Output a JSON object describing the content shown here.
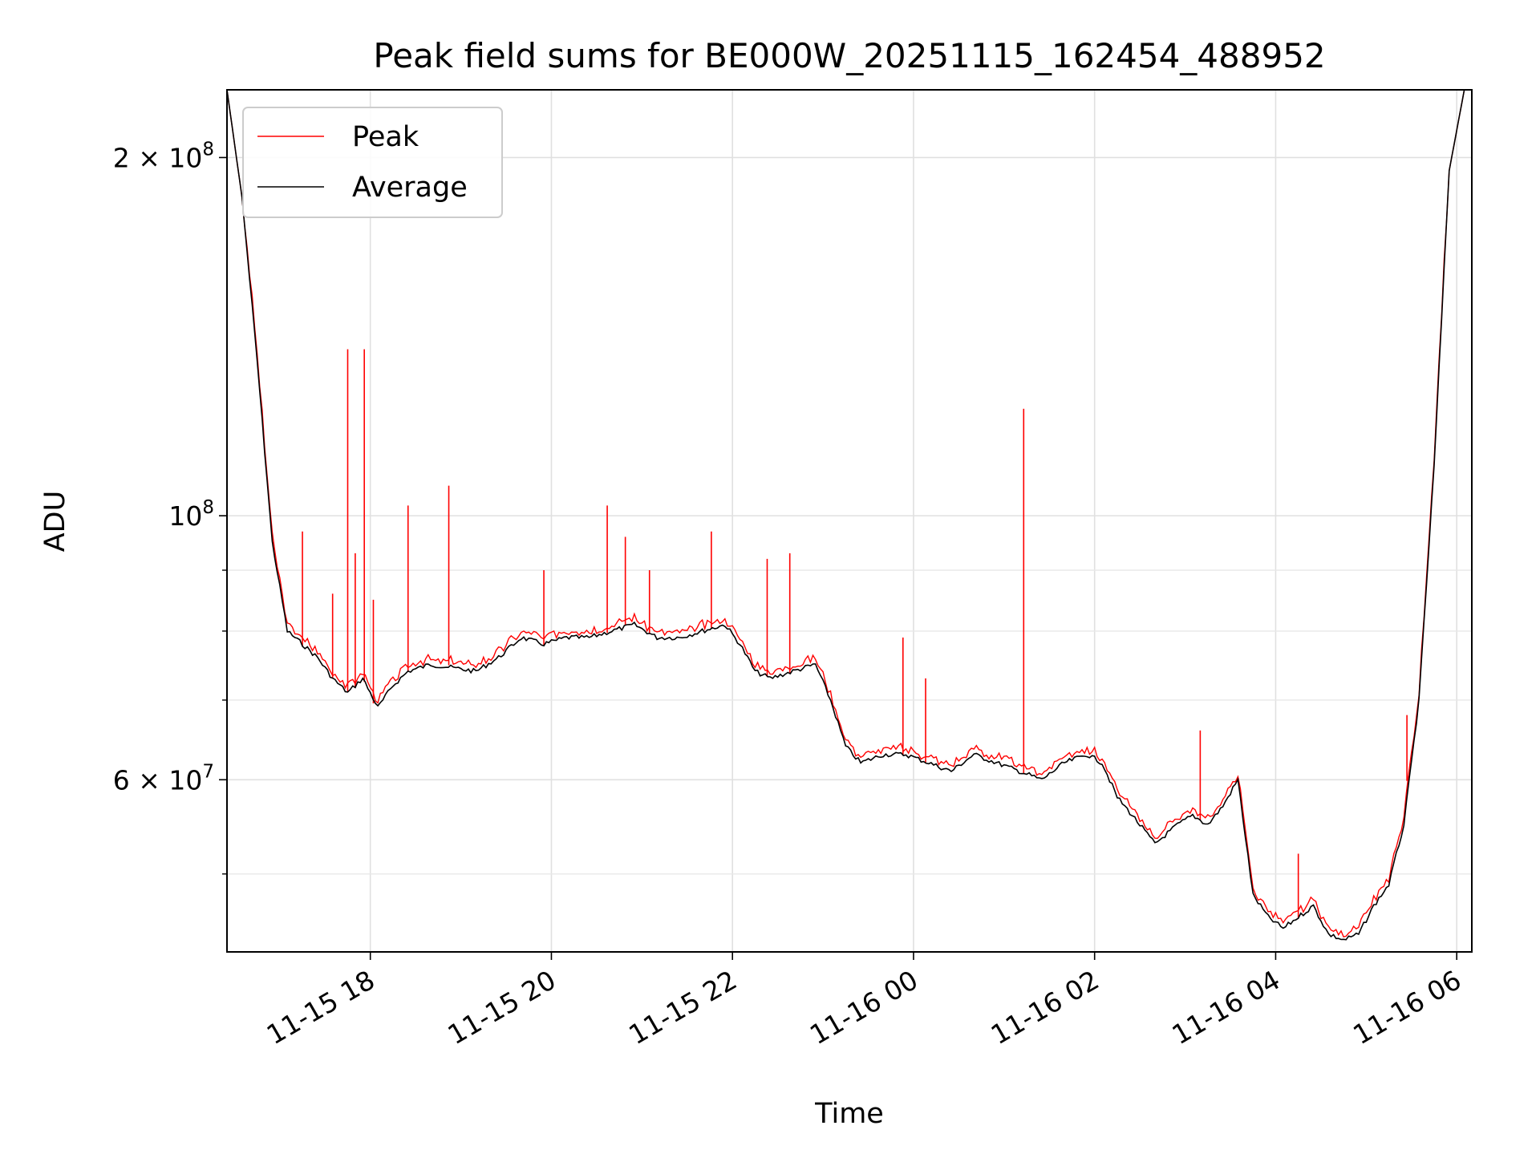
{
  "chart_data": {
    "type": "line",
    "title": "Peak field sums for BE000W_20251115_162454_488952",
    "xlabel": "Time",
    "ylabel": "ADU",
    "y_scale": "log",
    "ylim": [
      43000000,
      228000000
    ],
    "xlim": [
      "2025-11-15 16:25",
      "2025-11-16 06:10"
    ],
    "x_ticks": [
      {
        "value": "2025-11-15 18:00",
        "label": "11-15 18"
      },
      {
        "value": "2025-11-15 20:00",
        "label": "11-15 20"
      },
      {
        "value": "2025-11-15 22:00",
        "label": "11-15 22"
      },
      {
        "value": "2025-11-16 00:00",
        "label": "11-16 00"
      },
      {
        "value": "2025-11-16 02:00",
        "label": "11-16 02"
      },
      {
        "value": "2025-11-16 04:00",
        "label": "11-16 04"
      },
      {
        "value": "2025-11-16 06:00",
        "label": "11-16 06"
      }
    ],
    "y_major_ticks": [
      {
        "value": 100000000,
        "base": "10",
        "exp": "8"
      },
      {
        "value": 200000000,
        "base": "2 × 10",
        "exp": "8"
      },
      {
        "value": 60000000,
        "base": "6 × 10",
        "exp": "7"
      }
    ],
    "y_minor_ticks": [
      50000000,
      70000000,
      80000000,
      90000000
    ],
    "grid": true,
    "legend_position": "top-left",
    "series": [
      {
        "name": "Average",
        "color": "#000000",
        "x": [
          "2025-11-15 16:25",
          "2025-11-15 16:35",
          "2025-11-15 16:45",
          "2025-11-15 16:55",
          "2025-11-15 17:05",
          "2025-11-15 17:15",
          "2025-11-15 17:25",
          "2025-11-15 17:35",
          "2025-11-15 17:45",
          "2025-11-15 17:55",
          "2025-11-15 18:05",
          "2025-11-15 18:15",
          "2025-11-15 18:25",
          "2025-11-15 18:40",
          "2025-11-15 18:55",
          "2025-11-15 19:10",
          "2025-11-15 19:25",
          "2025-11-15 19:40",
          "2025-11-15 19:55",
          "2025-11-15 20:10",
          "2025-11-15 20:25",
          "2025-11-15 20:40",
          "2025-11-15 20:55",
          "2025-11-15 21:10",
          "2025-11-15 21:25",
          "2025-11-15 21:40",
          "2025-11-15 21:55",
          "2025-11-15 22:05",
          "2025-11-15 22:15",
          "2025-11-15 22:25",
          "2025-11-15 22:40",
          "2025-11-15 22:55",
          "2025-11-15 23:05",
          "2025-11-15 23:15",
          "2025-11-15 23:25",
          "2025-11-15 23:40",
          "2025-11-15 23:55",
          "2025-11-16 00:10",
          "2025-11-16 00:25",
          "2025-11-16 00:40",
          "2025-11-16 00:55",
          "2025-11-16 01:10",
          "2025-11-16 01:25",
          "2025-11-16 01:40",
          "2025-11-16 01:55",
          "2025-11-16 02:05",
          "2025-11-16 02:15",
          "2025-11-16 02:25",
          "2025-11-16 02:40",
          "2025-11-16 02:55",
          "2025-11-16 03:05",
          "2025-11-16 03:15",
          "2025-11-16 03:25",
          "2025-11-16 03:35",
          "2025-11-16 03:45",
          "2025-11-16 03:55",
          "2025-11-16 04:05",
          "2025-11-16 04:15",
          "2025-11-16 04:25",
          "2025-11-16 04:35",
          "2025-11-16 04:45",
          "2025-11-16 04:55",
          "2025-11-16 05:05",
          "2025-11-16 05:15",
          "2025-11-16 05:25",
          "2025-11-16 05:35",
          "2025-11-16 05:45",
          "2025-11-16 05:55",
          "2025-11-16 06:05",
          "2025-11-16 06:10"
        ],
        "values": [
          228000000,
          185000000,
          135000000,
          95000000,
          80000000,
          78000000,
          76000000,
          73000000,
          71000000,
          73000000,
          69000000,
          72000000,
          74000000,
          75000000,
          74500000,
          74000000,
          76000000,
          79000000,
          78000000,
          79000000,
          79000000,
          80000000,
          81000000,
          79000000,
          79000000,
          80000000,
          81000000,
          78000000,
          74000000,
          73000000,
          74000000,
          75000000,
          70000000,
          64000000,
          62000000,
          63000000,
          63000000,
          62000000,
          61000000,
          63000000,
          62000000,
          61000000,
          60000000,
          62000000,
          63000000,
          62000000,
          58000000,
          56000000,
          53000000,
          55000000,
          56000000,
          55000000,
          57000000,
          60000000,
          48000000,
          46000000,
          45000000,
          46000000,
          47000000,
          44500000,
          44000000,
          44500000,
          47000000,
          49000000,
          55000000,
          70000000,
          110000000,
          195000000,
          228000000,
          228000000
        ]
      },
      {
        "name": "Peak",
        "color": "#ff0000",
        "x": [
          "2025-11-15 17:15",
          "2025-11-15 17:35",
          "2025-11-15 17:45",
          "2025-11-15 17:50",
          "2025-11-15 17:56",
          "2025-11-15 18:02",
          "2025-11-15 18:25",
          "2025-11-15 18:52",
          "2025-11-15 19:55",
          "2025-11-15 20:37",
          "2025-11-15 20:49",
          "2025-11-15 21:05",
          "2025-11-15 21:46",
          "2025-11-15 22:23",
          "2025-11-15 22:38",
          "2025-11-15 23:53",
          "2025-11-16 00:08",
          "2025-11-16 01:13",
          "2025-11-16 03:10",
          "2025-11-16 04:15",
          "2025-11-16 05:27"
        ],
        "values": [
          97000000,
          86000000,
          138000000,
          93000000,
          138000000,
          85000000,
          102000000,
          106000000,
          90000000,
          102000000,
          96000000,
          90000000,
          97000000,
          92000000,
          93000000,
          79000000,
          73000000,
          123000000,
          66000000,
          52000000,
          68000000
        ]
      }
    ]
  }
}
